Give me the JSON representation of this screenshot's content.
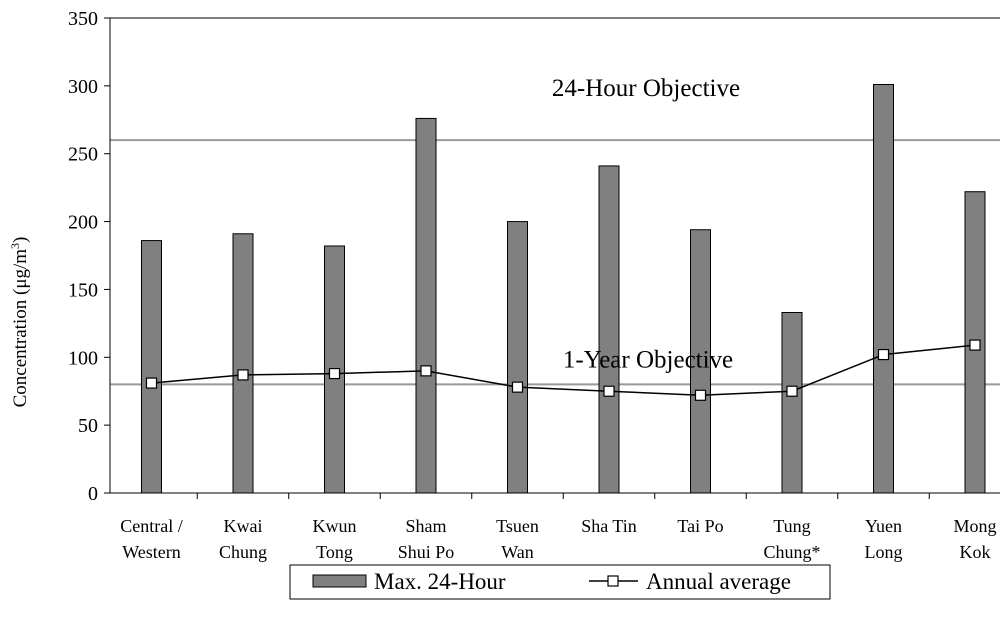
{
  "chart_data": {
    "type": "bar",
    "ylabel_main": "Concentration (μg/m",
    "ylabel_sup": "3",
    "ylabel_close": ")",
    "ylim": [
      0,
      350
    ],
    "yticks": [
      "0",
      "50",
      "100",
      "150",
      "200",
      "250",
      "300",
      "350"
    ],
    "categories": [
      [
        "Central /",
        "Western"
      ],
      [
        "Kwai",
        "Chung"
      ],
      [
        "Kwun",
        "Tong"
      ],
      [
        "Sham",
        "Shui Po"
      ],
      [
        "Tsuen",
        "Wan"
      ],
      [
        "Sha Tin",
        ""
      ],
      [
        "Tai Po",
        ""
      ],
      [
        "Tung",
        "Chung*"
      ],
      [
        "Yuen",
        "Long"
      ],
      [
        "Mong",
        "Kok"
      ]
    ],
    "series": [
      {
        "name": "Max. 24-Hour",
        "kind": "bar",
        "color": "#808080",
        "values": [
          186,
          191,
          182,
          276,
          200,
          241,
          194,
          133,
          301,
          222
        ]
      },
      {
        "name": "Annual average",
        "kind": "line",
        "color": "#000000",
        "values": [
          81,
          87,
          88,
          90,
          78,
          75,
          72,
          75,
          102,
          109
        ]
      }
    ],
    "reference_lines": [
      {
        "label": "24-Hour Objective",
        "value": 260,
        "color": "#999999"
      },
      {
        "label": "1-Year Objective",
        "value": 80,
        "color": "#999999"
      }
    ],
    "legend_position": "bottom"
  }
}
